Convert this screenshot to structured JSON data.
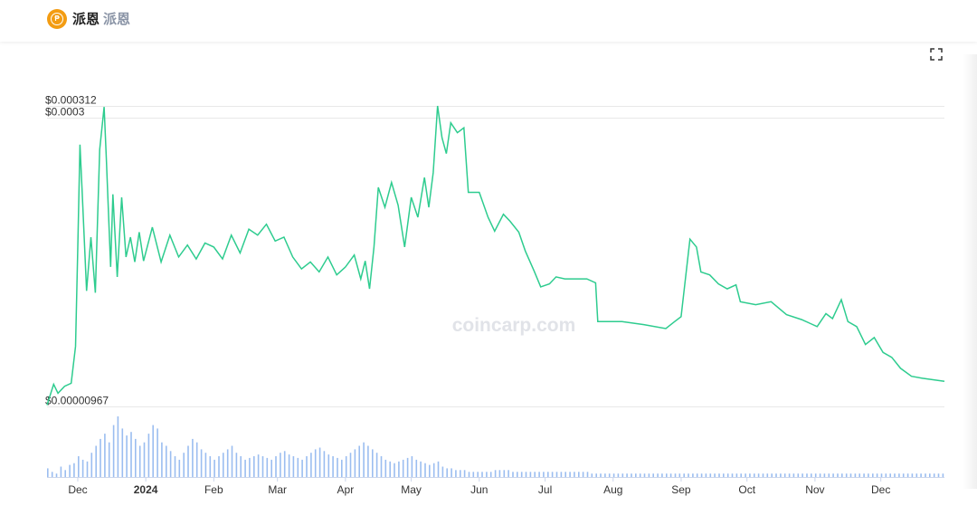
{
  "header": {
    "coin_name": "派恩",
    "coin_symbol": "派恩",
    "logo_icon": "coin-logo-icon"
  },
  "toolbar": {
    "fullscreen_icon": "fullscreen-icon"
  },
  "watermark": "coincarp.com",
  "colors": {
    "line": "#2ecc8f",
    "volume": "#9bbdf0",
    "grid": "#e8e8e8"
  },
  "chart_data": {
    "type": "line",
    "title": "",
    "y_labels": [
      "$0.000312",
      "$0.0003",
      "$0.00000967"
    ],
    "y_values": [
      0.000312,
      0.0003,
      9.67e-06
    ],
    "ylim": [
      9.67e-06,
      0.000312
    ],
    "x_tick_labels": [
      "Dec",
      "2024",
      "Feb",
      "Mar",
      "Apr",
      "May",
      "Jun",
      "Jul",
      "Aug",
      "Sep",
      "Oct",
      "Nov",
      "Dec"
    ],
    "x_tick_dates": [
      "2023-12-01",
      "2024-01-01",
      "2024-02-01",
      "2024-03-01",
      "2024-04-01",
      "2024-05-01",
      "2024-06-01",
      "2024-07-01",
      "2024-08-01",
      "2024-09-01",
      "2024-10-01",
      "2024-11-01",
      "2024-12-01"
    ],
    "xlim": [
      "2023-11-17",
      "2024-12-30"
    ],
    "grid": true,
    "price_series": [
      [
        "2023-11-17",
        1.1e-05
      ],
      [
        "2023-11-20",
        3.2e-05
      ],
      [
        "2023-11-22",
        2.3e-05
      ],
      [
        "2023-11-25",
        3e-05
      ],
      [
        "2023-11-28",
        3.3e-05
      ],
      [
        "2023-11-30",
        7e-05
      ],
      [
        "2023-12-01",
        0.00017
      ],
      [
        "2023-12-02",
        0.000273
      ],
      [
        "2023-12-03",
        0.000226
      ],
      [
        "2023-12-05",
        0.000126
      ],
      [
        "2023-12-07",
        0.00018
      ],
      [
        "2023-12-09",
        0.000124
      ],
      [
        "2023-12-11",
        0.000268
      ],
      [
        "2023-12-13",
        0.000311
      ],
      [
        "2023-12-14",
        0.00026
      ],
      [
        "2023-12-16",
        0.00015
      ],
      [
        "2023-12-17",
        0.000223
      ],
      [
        "2023-12-19",
        0.00014
      ],
      [
        "2023-12-21",
        0.00022
      ],
      [
        "2023-12-23",
        0.00016
      ],
      [
        "2023-12-25",
        0.00018
      ],
      [
        "2023-12-27",
        0.000155
      ],
      [
        "2023-12-29",
        0.000185
      ],
      [
        "2023-12-31",
        0.000156
      ],
      [
        "2024-01-04",
        0.00019
      ],
      [
        "2024-01-08",
        0.000155
      ],
      [
        "2024-01-12",
        0.000182
      ],
      [
        "2024-01-16",
        0.00016
      ],
      [
        "2024-01-20",
        0.000172
      ],
      [
        "2024-01-24",
        0.000158
      ],
      [
        "2024-01-28",
        0.000174
      ],
      [
        "2024-02-01",
        0.00017
      ],
      [
        "2024-02-05",
        0.000158
      ],
      [
        "2024-02-09",
        0.000182
      ],
      [
        "2024-02-13",
        0.000164
      ],
      [
        "2024-02-17",
        0.000188
      ],
      [
        "2024-02-21",
        0.000182
      ],
      [
        "2024-02-25",
        0.000193
      ],
      [
        "2024-02-29",
        0.000176
      ],
      [
        "2024-03-04",
        0.00018
      ],
      [
        "2024-03-08",
        0.00016
      ],
      [
        "2024-03-12",
        0.000148
      ],
      [
        "2024-03-16",
        0.000155
      ],
      [
        "2024-03-20",
        0.000145
      ],
      [
        "2024-03-24",
        0.00016
      ],
      [
        "2024-03-28",
        0.000142
      ],
      [
        "2024-04-01",
        0.00015
      ],
      [
        "2024-04-05",
        0.000162
      ],
      [
        "2024-04-08",
        0.000138
      ],
      [
        "2024-04-10",
        0.000156
      ],
      [
        "2024-04-12",
        0.000128
      ],
      [
        "2024-04-14",
        0.00017
      ],
      [
        "2024-04-16",
        0.00023
      ],
      [
        "2024-04-19",
        0.00021
      ],
      [
        "2024-04-22",
        0.000235
      ],
      [
        "2024-04-25",
        0.000212
      ],
      [
        "2024-04-28",
        0.00017
      ],
      [
        "2024-05-01",
        0.00022
      ],
      [
        "2024-05-04",
        0.0002
      ],
      [
        "2024-05-07",
        0.00024
      ],
      [
        "2024-05-09",
        0.00021
      ],
      [
        "2024-05-11",
        0.000245
      ],
      [
        "2024-05-13",
        0.000312
      ],
      [
        "2024-05-15",
        0.00028
      ],
      [
        "2024-05-17",
        0.000264
      ],
      [
        "2024-05-19",
        0.000295
      ],
      [
        "2024-05-22",
        0.000285
      ],
      [
        "2024-05-25",
        0.00029
      ],
      [
        "2024-05-27",
        0.000225
      ],
      [
        "2024-06-01",
        0.000225
      ],
      [
        "2024-06-05",
        0.0002
      ],
      [
        "2024-06-08",
        0.000186
      ],
      [
        "2024-06-12",
        0.000203
      ],
      [
        "2024-06-15",
        0.000196
      ],
      [
        "2024-06-19",
        0.000185
      ],
      [
        "2024-06-22",
        0.000166
      ],
      [
        "2024-06-26",
        0.000146
      ],
      [
        "2024-06-29",
        0.00013
      ],
      [
        "2024-07-03",
        0.000133
      ],
      [
        "2024-07-06",
        0.00014
      ],
      [
        "2024-07-10",
        0.000138
      ],
      [
        "2024-07-14",
        0.000138
      ],
      [
        "2024-07-20",
        0.000138
      ],
      [
        "2024-07-24",
        0.000134
      ],
      [
        "2024-07-25",
        9.5e-05
      ],
      [
        "2024-08-05",
        9.5e-05
      ],
      [
        "2024-08-15",
        9.2e-05
      ],
      [
        "2024-08-25",
        8.8e-05
      ],
      [
        "2024-08-29",
        9.5e-05
      ],
      [
        "2024-09-01",
        0.0001
      ],
      [
        "2024-09-05",
        0.000178
      ],
      [
        "2024-09-08",
        0.00017
      ],
      [
        "2024-09-10",
        0.000145
      ],
      [
        "2024-09-14",
        0.000142
      ],
      [
        "2024-09-18",
        0.000133
      ],
      [
        "2024-09-22",
        0.000128
      ],
      [
        "2024-09-26",
        0.000132
      ],
      [
        "2024-09-28",
        0.000115
      ],
      [
        "2024-10-05",
        0.000112
      ],
      [
        "2024-10-12",
        0.000115
      ],
      [
        "2024-10-19",
        0.000102
      ],
      [
        "2024-10-26",
        9.7e-05
      ],
      [
        "2024-10-30",
        9.3e-05
      ],
      [
        "2024-11-02",
        9e-05
      ],
      [
        "2024-11-06",
        0.000103
      ],
      [
        "2024-11-09",
        9.8e-05
      ],
      [
        "2024-11-13",
        0.000117
      ],
      [
        "2024-11-16",
        9.5e-05
      ],
      [
        "2024-11-20",
        9e-05
      ],
      [
        "2024-11-24",
        7.2e-05
      ],
      [
        "2024-11-28",
        7.9e-05
      ],
      [
        "2024-12-02",
        6.4e-05
      ],
      [
        "2024-12-06",
        5.9e-05
      ],
      [
        "2024-12-10",
        4.8e-05
      ],
      [
        "2024-12-15",
        4e-05
      ],
      [
        "2024-12-20",
        3.8e-05
      ],
      [
        "2024-12-30",
        3.5e-05
      ]
    ],
    "volume_series": {
      "note_scale": "relative",
      "dates_start": "2023-11-17",
      "values": [
        5,
        3,
        2,
        6,
        4,
        7,
        8,
        12,
        10,
        9,
        14,
        18,
        22,
        25,
        20,
        30,
        35,
        28,
        24,
        26,
        22,
        18,
        20,
        25,
        30,
        28,
        20,
        18,
        15,
        12,
        10,
        14,
        18,
        22,
        20,
        16,
        14,
        12,
        10,
        12,
        14,
        16,
        18,
        14,
        12,
        10,
        11,
        12,
        13,
        12,
        11,
        10,
        12,
        14,
        15,
        13,
        12,
        11,
        10,
        12,
        14,
        16,
        17,
        15,
        13,
        12,
        11,
        10,
        12,
        14,
        16,
        18,
        20,
        18,
        16,
        14,
        12,
        10,
        9,
        8,
        9,
        10,
        11,
        12,
        10,
        9,
        8,
        7,
        8,
        9,
        6,
        5,
        5,
        4,
        4,
        4,
        3,
        3,
        3,
        3,
        3,
        3,
        4,
        4,
        4,
        4,
        3,
        3,
        3,
        3,
        3,
        3,
        3,
        3,
        3,
        3,
        3,
        3,
        3,
        3,
        3,
        3,
        3,
        3,
        2,
        2,
        2,
        2,
        2,
        2,
        2,
        2,
        2,
        2,
        2,
        2,
        2,
        2,
        2,
        2,
        2,
        2,
        2,
        2,
        2,
        2,
        2,
        2,
        2,
        2,
        2,
        2,
        2,
        2,
        2,
        2,
        2,
        2,
        2,
        2,
        2,
        2,
        2,
        2,
        2,
        2,
        2,
        2,
        2,
        2,
        2,
        2,
        2,
        2,
        2,
        2,
        2,
        2,
        2,
        2,
        2,
        2,
        2,
        2,
        2,
        2,
        2,
        2,
        2,
        2,
        2,
        2,
        2,
        2,
        2,
        2,
        2,
        2,
        2,
        2,
        2,
        2,
        2,
        2,
        2,
        2,
        2,
        2,
        2,
        2,
        2,
        2,
        2,
        2,
        2,
        2
      ]
    }
  }
}
